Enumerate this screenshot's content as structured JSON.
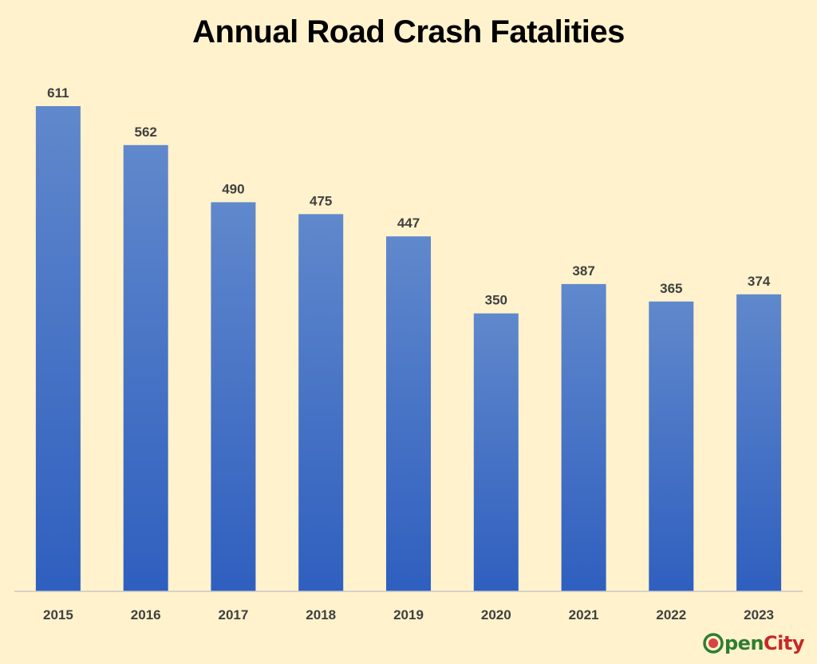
{
  "chart_data": {
    "type": "bar",
    "title": "Annual Road Crash Fatalities",
    "xlabel": "",
    "ylabel": "",
    "categories": [
      "2015",
      "2016",
      "2017",
      "2018",
      "2019",
      "2020",
      "2021",
      "2022",
      "2023"
    ],
    "values": [
      611,
      562,
      490,
      475,
      447,
      350,
      387,
      365,
      374
    ],
    "ylim": [
      0,
      611
    ],
    "data_labels": true,
    "grid": false,
    "legend": "none"
  },
  "colors": {
    "background": "#fff2cc",
    "bar_top": "#6088cc",
    "bar_bottom": "#2f5fbf",
    "label_text": "#404040",
    "axis_line": "#c8c8c8"
  },
  "logo": {
    "text": "OpenCity",
    "icon": "opencity-logo-icon"
  }
}
